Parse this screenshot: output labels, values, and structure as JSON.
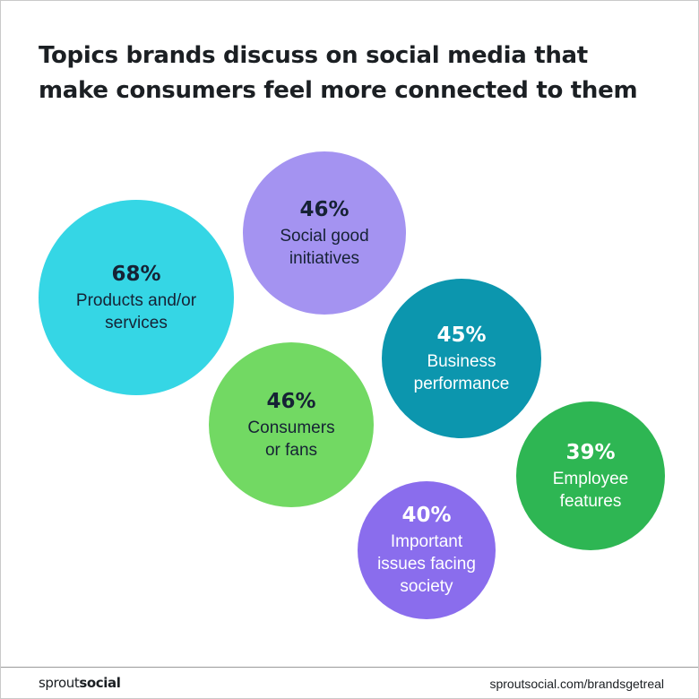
{
  "title_lines": [
    "Topics brands discuss on social media that",
    "make consumers feel more connected to them"
  ],
  "chart_data": {
    "type": "bubble",
    "title": "Topics brands discuss on social media that make consumers feel more connected to them",
    "unit": "%",
    "points": [
      {
        "label": "Products and/or services",
        "value": 68,
        "value_text": "68%",
        "label_text": "Products and/or\nservices",
        "color": "#35d6e5",
        "text_color": "dark"
      },
      {
        "label": "Social good initiatives",
        "value": 46,
        "value_text": "46%",
        "label_text": "Social good\ninitiatives",
        "color": "#a493f1",
        "text_color": "dark"
      },
      {
        "label": "Business performance",
        "value": 45,
        "value_text": "45%",
        "label_text": "Business\nperformance",
        "color": "#0c96ae",
        "text_color": "light"
      },
      {
        "label": "Consumers or fans",
        "value": 46,
        "value_text": "46%",
        "label_text": "Consumers\nor fans",
        "color": "#72d963",
        "text_color": "dark"
      },
      {
        "label": "Employee features",
        "value": 39,
        "value_text": "39%",
        "label_text": "Employee\nfeatures",
        "color": "#2eb653",
        "text_color": "light"
      },
      {
        "label": "Important issues facing society",
        "value": 40,
        "value_text": "40%",
        "label_text": "Important\nissues facing\nsociety",
        "color": "#8a6ded",
        "text_color": "light"
      }
    ]
  },
  "footer": {
    "logo_part1": "sprout",
    "logo_part2": "social",
    "url": "sproutsocial.com/brandsgetreal"
  }
}
